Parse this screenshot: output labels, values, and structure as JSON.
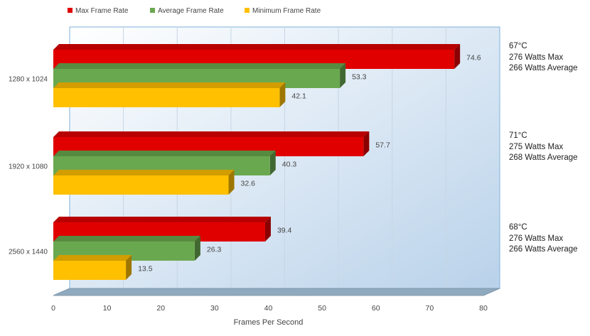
{
  "chart_data": {
    "type": "bar",
    "orientation": "horizontal",
    "categories": [
      "1280 x 1024",
      "1920 x 1080",
      "2560 x 1440"
    ],
    "series": [
      {
        "name": "Max Frame Rate",
        "color": "#e00000",
        "values": [
          74.6,
          57.7,
          39.4
        ]
      },
      {
        "name": "Average Frame Rate",
        "color": "#6aa84f",
        "values": [
          53.3,
          40.3,
          26.3
        ]
      },
      {
        "name": "Minimum Frame Rate",
        "color": "#ffc000",
        "values": [
          42.1,
          32.6,
          13.5
        ]
      }
    ],
    "xlabel": "Frames Per Second",
    "xlim": [
      0,
      80
    ],
    "xticks": [
      "0",
      "10",
      "20",
      "30",
      "40",
      "50",
      "60",
      "70",
      "80"
    ],
    "grid": true,
    "legend_position": "top-left",
    "annotations": [
      {
        "lines": [
          "67°C",
          "276 Watts Max",
          "266 Watts Average"
        ]
      },
      {
        "lines": [
          "71°C",
          "275 Watts Max",
          "268 Watts Average"
        ]
      },
      {
        "lines": [
          "68°C",
          "276 Watts Max",
          "266 Watts Average"
        ]
      }
    ]
  }
}
